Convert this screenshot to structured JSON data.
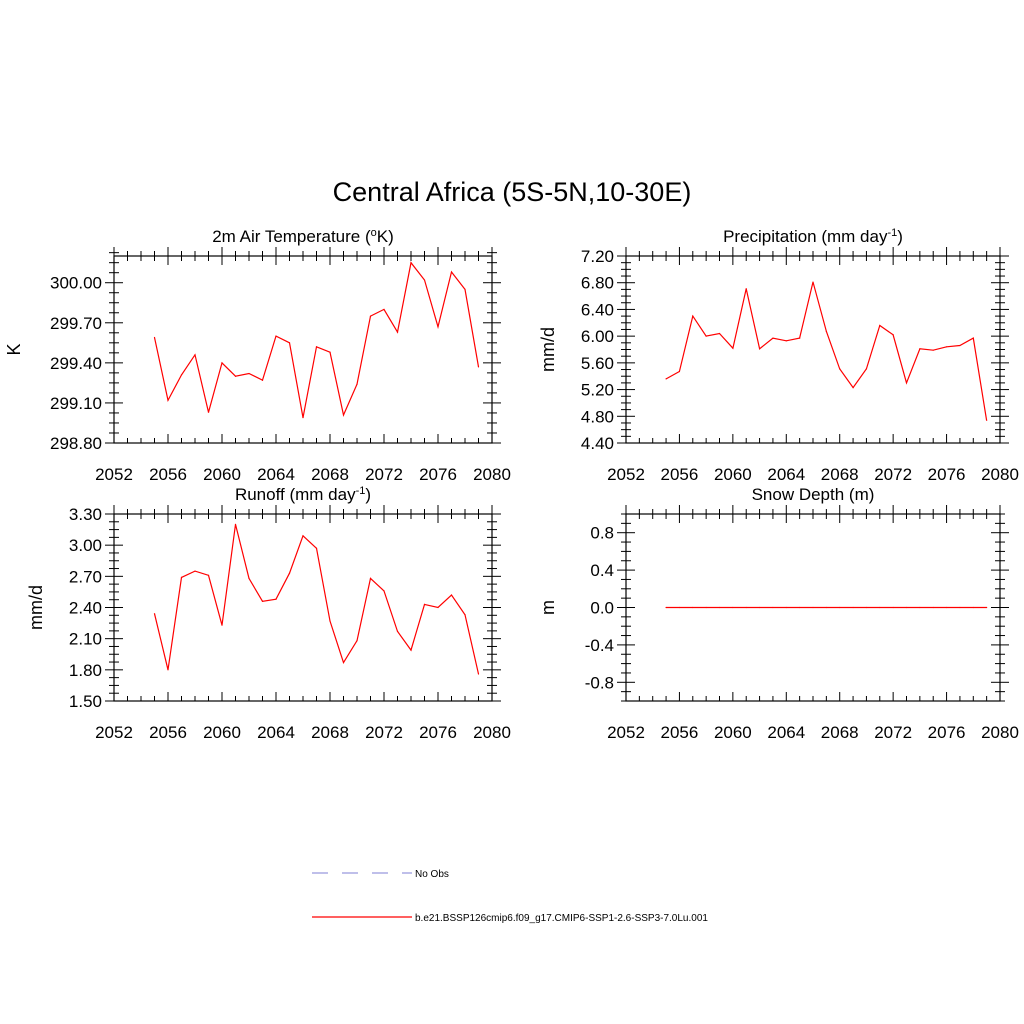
{
  "figure": {
    "title": "Central Africa (5S-5N,10-30E)"
  },
  "legend": [
    {
      "label": "No Obs",
      "color": "#9999dd",
      "style": "dashed"
    },
    {
      "label": "b.e21.BSSP126cmip6.f09_g17.CMIP6-SSP1-2.6-SSP3-7.0Lu.001",
      "color": "#ff0000",
      "style": "solid"
    }
  ],
  "chart_data": [
    {
      "type": "line",
      "title_main": "2m Air Temperature (",
      "title_sup": "o",
      "title_tail": "K)",
      "ylabel": "K",
      "xlim": [
        2052,
        2080
      ],
      "xticks": [
        "2052",
        "2056",
        "2060",
        "2064",
        "2068",
        "2072",
        "2076",
        "2080"
      ],
      "ylim": [
        298.8,
        300.2
      ],
      "yticks": [
        "298.80",
        "299.10",
        "299.40",
        "299.70",
        "300.00"
      ],
      "color": "#ff0000",
      "x": [
        2055,
        2056,
        2057,
        2058,
        2059,
        2060,
        2061,
        2062,
        2063,
        2064,
        2065,
        2066,
        2067,
        2068,
        2069,
        2070,
        2071,
        2072,
        2073,
        2074,
        2075,
        2076,
        2077,
        2078,
        2079
      ],
      "values": [
        299.59,
        299.12,
        299.31,
        299.46,
        299.03,
        299.4,
        299.3,
        299.32,
        299.27,
        299.6,
        299.55,
        298.99,
        299.52,
        299.48,
        299.01,
        299.24,
        299.75,
        299.8,
        299.63,
        300.15,
        300.02,
        299.67,
        300.08,
        299.95,
        299.37
      ]
    },
    {
      "type": "line",
      "title_main": "Precipitation (mm day",
      "title_sup": "-1",
      "title_tail": ")",
      "ylabel": "mm/d",
      "xlim": [
        2052,
        2080
      ],
      "xticks": [
        "2052",
        "2056",
        "2060",
        "2064",
        "2068",
        "2072",
        "2076",
        "2080"
      ],
      "ylim": [
        4.4,
        7.2
      ],
      "yticks": [
        "4.40",
        "4.80",
        "5.20",
        "5.60",
        "6.00",
        "6.40",
        "6.80",
        "7.20"
      ],
      "color": "#ff0000",
      "x": [
        2055,
        2056,
        2057,
        2058,
        2059,
        2060,
        2061,
        2062,
        2063,
        2064,
        2065,
        2066,
        2067,
        2068,
        2069,
        2070,
        2071,
        2072,
        2073,
        2074,
        2075,
        2076,
        2077,
        2078,
        2079
      ],
      "values": [
        5.36,
        5.47,
        6.3,
        6.0,
        6.04,
        5.82,
        6.71,
        5.81,
        5.97,
        5.93,
        5.97,
        6.81,
        6.07,
        5.51,
        5.23,
        5.51,
        6.16,
        6.02,
        5.3,
        5.81,
        5.79,
        5.84,
        5.86,
        5.97,
        4.74
      ]
    },
    {
      "type": "line",
      "title_main": "Runoff (mm day",
      "title_sup": "-1",
      "title_tail": ")",
      "ylabel": "mm/d",
      "xlim": [
        2052,
        2080
      ],
      "xticks": [
        "2052",
        "2056",
        "2060",
        "2064",
        "2068",
        "2072",
        "2076",
        "2080"
      ],
      "ylim": [
        1.5,
        3.3
      ],
      "yticks": [
        "1.50",
        "1.80",
        "2.10",
        "2.40",
        "2.70",
        "3.00",
        "3.30"
      ],
      "color": "#ff0000",
      "x": [
        2055,
        2056,
        2057,
        2058,
        2059,
        2060,
        2061,
        2062,
        2063,
        2064,
        2065,
        2066,
        2067,
        2068,
        2069,
        2070,
        2071,
        2072,
        2073,
        2074,
        2075,
        2076,
        2077,
        2078,
        2079
      ],
      "values": [
        2.34,
        1.8,
        2.69,
        2.75,
        2.71,
        2.23,
        3.2,
        2.68,
        2.46,
        2.48,
        2.73,
        3.09,
        2.97,
        2.27,
        1.87,
        2.08,
        2.68,
        2.56,
        2.17,
        1.99,
        2.43,
        2.4,
        2.52,
        2.33,
        1.76
      ]
    },
    {
      "type": "line",
      "title_main": "Snow Depth (m)",
      "title_sup": "",
      "title_tail": "",
      "ylabel": "m",
      "xlim": [
        2052,
        2080
      ],
      "xticks": [
        "2052",
        "2056",
        "2060",
        "2064",
        "2068",
        "2072",
        "2076",
        "2080"
      ],
      "ylim": [
        -1.0,
        1.0
      ],
      "yticks": [
        "-0.8",
        "-0.4",
        "0.0",
        "0.4",
        "0.8"
      ],
      "color": "#ff0000",
      "x": [
        2055,
        2056,
        2057,
        2058,
        2059,
        2060,
        2061,
        2062,
        2063,
        2064,
        2065,
        2066,
        2067,
        2068,
        2069,
        2070,
        2071,
        2072,
        2073,
        2074,
        2075,
        2076,
        2077,
        2078,
        2079
      ],
      "values": [
        0,
        0,
        0,
        0,
        0,
        0,
        0,
        0,
        0,
        0,
        0,
        0,
        0,
        0,
        0,
        0,
        0,
        0,
        0,
        0,
        0,
        0,
        0,
        0,
        0
      ]
    }
  ]
}
